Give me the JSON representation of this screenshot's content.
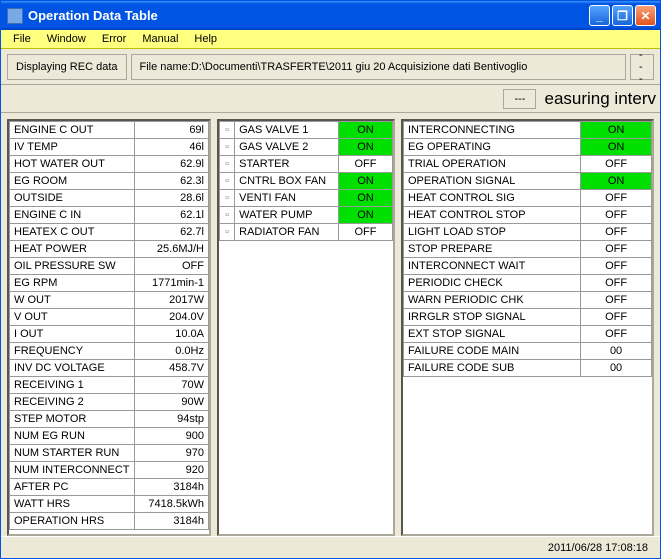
{
  "window": {
    "title": "Operation Data Table"
  },
  "menu": {
    "items": [
      "File",
      "Window",
      "Error",
      "Manual",
      "Help"
    ]
  },
  "toolbar": {
    "rec_label": "Displaying REC data",
    "file_label": "File name:D:\\Documenti\\TRASFERTE\\2011 giu 20 Acquisizione dati Bentivoglio",
    "dots": "---"
  },
  "interval": {
    "dots": "---",
    "text": "easuring interv"
  },
  "col1": [
    {
      "label": "ENGINE C OUT",
      "value": "69l"
    },
    {
      "label": "IV TEMP",
      "value": "46l"
    },
    {
      "label": "HOT WATER OUT",
      "value": "62.9l"
    },
    {
      "label": "EG ROOM",
      "value": "62.3l"
    },
    {
      "label": "OUTSIDE",
      "value": "28.6l"
    },
    {
      "label": "ENGINE C IN",
      "value": "62.1l"
    },
    {
      "label": "HEATEX C OUT",
      "value": "62.7l"
    },
    {
      "label": "HEAT POWER",
      "value": "25.6MJ/H"
    },
    {
      "label": "OIL PRESSURE SW",
      "value": "OFF"
    },
    {
      "label": "EG RPM",
      "value": "1771min-1"
    },
    {
      "label": "W OUT",
      "value": "2017W"
    },
    {
      "label": "V OUT",
      "value": "204.0V"
    },
    {
      "label": "I OUT",
      "value": "10.0A"
    },
    {
      "label": "FREQUENCY",
      "value": "0.0Hz"
    },
    {
      "label": "INV DC VOLTAGE",
      "value": "458.7V"
    },
    {
      "label": "RECEIVING 1",
      "value": "70W"
    },
    {
      "label": "RECEIVING 2",
      "value": "90W"
    },
    {
      "label": "STEP MOTOR",
      "value": "94stp"
    },
    {
      "label": "NUM EG RUN",
      "value": "900"
    },
    {
      "label": "NUM STARTER RUN",
      "value": "970"
    },
    {
      "label": "NUM INTERCONNECT",
      "value": "920"
    },
    {
      "label": "AFTER PC",
      "value": "3184h"
    },
    {
      "label": "WATT HRS",
      "value": "7418.5kWh"
    },
    {
      "label": "OPERATION HRS",
      "value": "3184h"
    }
  ],
  "col2": [
    {
      "label": "GAS VALVE 1",
      "value": "ON",
      "on": true
    },
    {
      "label": "GAS VALVE 2",
      "value": "ON",
      "on": true
    },
    {
      "label": "STARTER",
      "value": "OFF",
      "on": false
    },
    {
      "label": "CNTRL BOX FAN",
      "value": "ON",
      "on": true
    },
    {
      "label": "VENTI FAN",
      "value": "ON",
      "on": true
    },
    {
      "label": "WATER PUMP",
      "value": "ON",
      "on": true
    },
    {
      "label": "RADIATOR FAN",
      "value": "OFF",
      "on": false
    }
  ],
  "col3": [
    {
      "label": "INTERCONNECTING",
      "value": "ON",
      "on": true
    },
    {
      "label": "EG OPERATING",
      "value": "ON",
      "on": true
    },
    {
      "label": "TRIAL OPERATION",
      "value": "OFF",
      "on": false
    },
    {
      "label": "OPERATION SIGNAL",
      "value": "ON",
      "on": true
    },
    {
      "label": "HEAT CONTROL SIG",
      "value": "OFF",
      "on": false
    },
    {
      "label": "HEAT CONTROL STOP",
      "value": "OFF",
      "on": false
    },
    {
      "label": "LIGHT LOAD STOP",
      "value": "OFF",
      "on": false
    },
    {
      "label": "STOP PREPARE",
      "value": "OFF",
      "on": false
    },
    {
      "label": "INTERCONNECT WAIT",
      "value": "OFF",
      "on": false
    },
    {
      "label": "PERIODIC CHECK",
      "value": "OFF",
      "on": false
    },
    {
      "label": "WARN PERIODIC CHK",
      "value": "OFF",
      "on": false
    },
    {
      "label": "IRRGLR STOP SIGNAL",
      "value": "OFF",
      "on": false
    },
    {
      "label": "EXT STOP SIGNAL",
      "value": "OFF",
      "on": false
    },
    {
      "label": "FAILURE CODE MAIN",
      "value": "00",
      "on": false
    },
    {
      "label": "FAILURE CODE SUB",
      "value": "00",
      "on": false
    }
  ],
  "status": {
    "timestamp": "2011/06/28   17:08:18"
  }
}
